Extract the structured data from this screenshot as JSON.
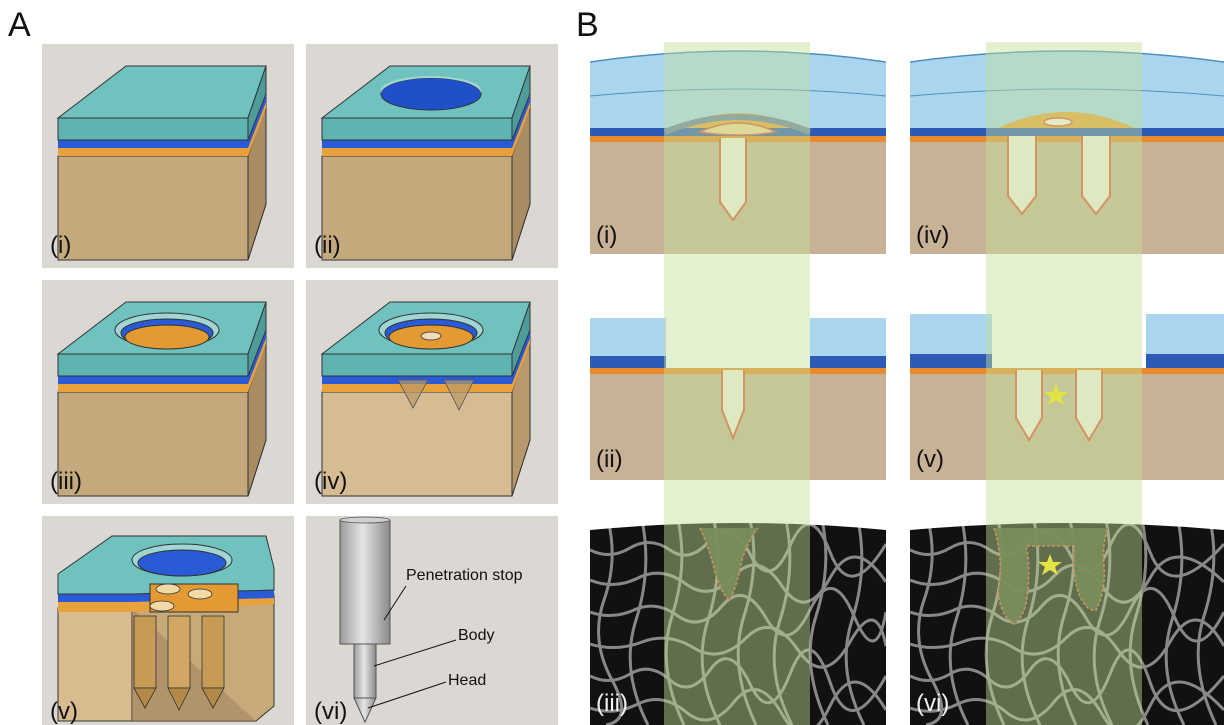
{
  "panel_a": {
    "letter": "A",
    "tiles": [
      {
        "label": "(i)"
      },
      {
        "label": "(ii)"
      },
      {
        "label": "(iii)"
      },
      {
        "label": "(iv)"
      },
      {
        "label": "(v)"
      },
      {
        "label": "(vi)"
      }
    ],
    "callouts": {
      "penetration_stop": "Penetration stop",
      "body": "Body",
      "head": "Head"
    }
  },
  "panel_b": {
    "letter": "B",
    "cells": [
      {
        "label": "(i)"
      },
      {
        "label": "(iv)"
      },
      {
        "label": "(ii)"
      },
      {
        "label": "(v)"
      },
      {
        "label": "(iii)"
      },
      {
        "label": "(vi)"
      }
    ]
  },
  "colors": {
    "tile_bg": "#dbd7d3",
    "cartilage": "#5fb3b0",
    "blue_layer": "#2a5bd7",
    "orange_layer": "#e9a23b",
    "bone": "#b79b6f",
    "outline_red": "#e0573d",
    "highlight_band": "#c4e096",
    "star": "#ffe600"
  }
}
